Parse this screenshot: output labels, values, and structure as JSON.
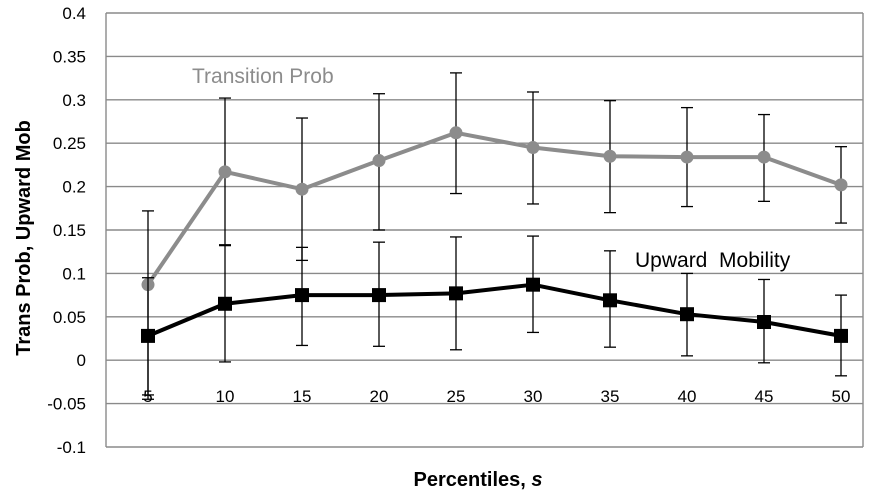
{
  "chart_data": {
    "type": "line",
    "xlabel_text": "Percentiles, ",
    "xlabel_var": "s",
    "ylabel": "Trans Prob, Upward Mob",
    "ylim": [
      -0.1,
      0.4
    ],
    "y_ticks": [
      "-0.1",
      "-0.05",
      "0",
      "0.05",
      "0.1",
      "0.15",
      "0.2",
      "0.25",
      "0.3",
      "0.35",
      "0.4"
    ],
    "y_tick_values": [
      -0.1,
      -0.05,
      0,
      0.05,
      0.1,
      0.15,
      0.2,
      0.25,
      0.3,
      0.35,
      0.4
    ],
    "categories": [
      "5",
      "10",
      "15",
      "20",
      "25",
      "30",
      "35",
      "40",
      "45",
      "50"
    ],
    "grid": "horizontal",
    "series": [
      {
        "name": "Transition Prob",
        "color": "#8c8c8c",
        "marker": "circle",
        "values": [
          0.087,
          0.217,
          0.197,
          0.23,
          0.262,
          0.245,
          0.235,
          0.234,
          0.234,
          0.202
        ],
        "err_high": [
          0.172,
          0.302,
          0.279,
          0.307,
          0.331,
          0.309,
          0.299,
          0.291,
          0.283,
          0.246
        ],
        "err_low": [
          -0.045,
          0.132,
          0.115,
          0.15,
          0.192,
          0.18,
          0.17,
          0.177,
          0.183,
          0.158
        ]
      },
      {
        "name": "Upward  Mobility",
        "color": "#000000",
        "marker": "square",
        "values": [
          0.028,
          0.065,
          0.075,
          0.075,
          0.077,
          0.087,
          0.069,
          0.053,
          0.044,
          0.028
        ],
        "err_high": [
          0.095,
          0.133,
          0.13,
          0.136,
          0.142,
          0.143,
          0.126,
          0.1,
          0.093,
          0.075
        ],
        "err_low": [
          -0.04,
          -0.002,
          0.017,
          0.016,
          0.012,
          0.032,
          0.015,
          0.005,
          -0.003,
          -0.018
        ]
      }
    ]
  }
}
